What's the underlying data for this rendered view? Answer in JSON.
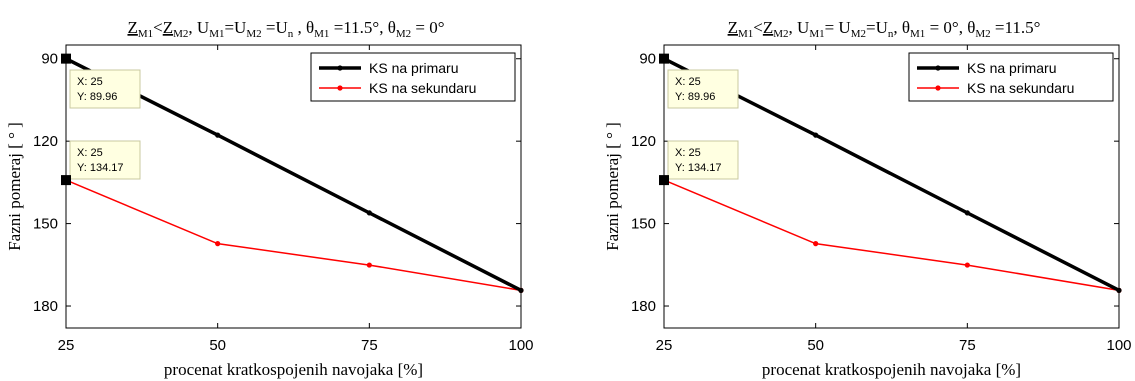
{
  "chart_data": [
    {
      "type": "line",
      "title_parts": [
        "Z",
        "M1",
        "<",
        "Z",
        "M2",
        ", U",
        "M1",
        "=U",
        "M2",
        " =U",
        "n",
        " , θ",
        "M1",
        " =11.5°, θ",
        "M2",
        " = 0°"
      ],
      "xlabel": "procenat kratkospojenih navojaka [%]",
      "ylabel": "Fazni pomeraj [ ° ]",
      "x": [
        25,
        50,
        75,
        100
      ],
      "xticks": [
        "25",
        "50",
        "75",
        "100"
      ],
      "yticks": [
        "90",
        "120",
        "150",
        "180"
      ],
      "xlim": [
        25,
        100
      ],
      "ylim": [
        85,
        188
      ],
      "y_reversed": true,
      "legend_position": "top-right",
      "series": [
        {
          "name": "KS na primaru",
          "color": "#000000",
          "values": [
            89.96,
            117.8,
            146.1,
            174.3
          ]
        },
        {
          "name": "KS na sekundaru",
          "color": "#ff0000",
          "values": [
            134.17,
            157.3,
            165.1,
            174.3
          ]
        }
      ],
      "datatips": [
        {
          "x_label": "X: 25",
          "y_label": "Y: 89.96",
          "x": 25,
          "y": 89.96
        },
        {
          "x_label": "X: 25",
          "y_label": "Y: 134.17",
          "x": 25,
          "y": 134.17
        }
      ]
    },
    {
      "type": "line",
      "title_parts": [
        "Z",
        "M1",
        "<",
        "Z",
        "M2",
        ", U",
        "M1",
        "= U",
        "M2",
        "=U",
        "n",
        ", θ",
        "M1",
        " = 0°, θ",
        "M2",
        " =11.5°"
      ],
      "xlabel": "procenat kratkospojenih navojaka [%]",
      "ylabel": "Fazni pomeraj [ ° ]",
      "x": [
        25,
        50,
        75,
        100
      ],
      "xticks": [
        "25",
        "50",
        "75",
        "100"
      ],
      "yticks": [
        "90",
        "120",
        "150",
        "180"
      ],
      "xlim": [
        25,
        100
      ],
      "ylim": [
        85,
        188
      ],
      "y_reversed": true,
      "legend_position": "top-right",
      "series": [
        {
          "name": "KS na primaru",
          "color": "#000000",
          "values": [
            89.96,
            117.8,
            146.1,
            174.3
          ]
        },
        {
          "name": "KS na sekundaru",
          "color": "#ff0000",
          "values": [
            134.17,
            157.3,
            165.1,
            174.3
          ]
        }
      ],
      "datatips": [
        {
          "x_label": "X: 25",
          "y_label": "Y: 89.96",
          "x": 25,
          "y": 89.96
        },
        {
          "x_label": "X: 25",
          "y_label": "Y: 134.17",
          "x": 25,
          "y": 134.17
        }
      ]
    }
  ]
}
